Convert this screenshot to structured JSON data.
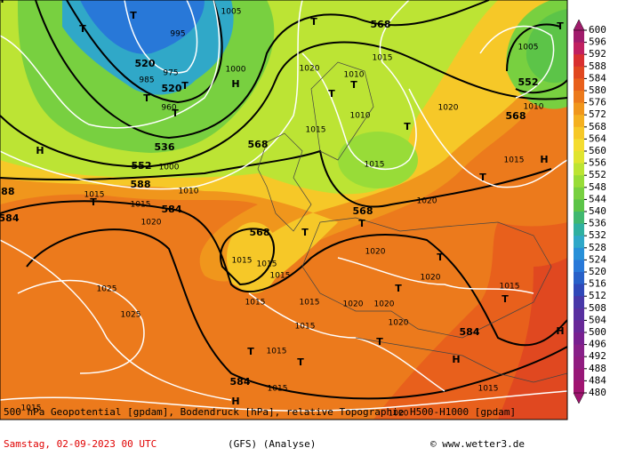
{
  "map": {
    "labels": [
      "568",
      "520",
      "520",
      "536",
      "552",
      "588",
      "584",
      "568",
      "568",
      "568",
      "584",
      "588",
      "552",
      "568",
      "584",
      "584",
      "1005",
      "1010",
      "1020",
      "1015",
      "1010",
      "1010",
      "1015",
      "1015",
      "1020",
      "1020",
      "1015",
      "1015",
      "1015",
      "1015",
      "1020",
      "1020",
      "1025",
      "1025",
      "1015",
      "1015",
      "1015",
      "1020",
      "1020",
      "1020",
      "1015",
      "1015",
      "1015",
      "1015",
      "1020",
      "1020",
      "1015",
      "1015",
      "960",
      "975",
      "985",
      "995",
      "1005",
      "1000",
      "1000",
      "1010",
      "1015",
      "T",
      "T",
      "T",
      "T",
      "T",
      "T",
      "T",
      "T",
      "T",
      "T",
      "T",
      "T",
      "T",
      "T",
      "T",
      "T",
      "T",
      "T",
      "T",
      "T",
      "H",
      "H",
      "H",
      "H",
      "H",
      "H",
      "H"
    ]
  },
  "legend": {
    "levels": [
      600,
      596,
      592,
      588,
      584,
      580,
      576,
      572,
      568,
      564,
      560,
      556,
      552,
      548,
      544,
      540,
      536,
      532,
      528,
      524,
      520,
      516,
      512,
      508,
      504,
      500,
      496,
      492,
      488,
      484,
      480
    ],
    "colors": [
      "#a01c6c",
      "#c02060",
      "#d83030",
      "#e04820",
      "#e8601c",
      "#ec7a1c",
      "#f0961c",
      "#f4b020",
      "#f6c828",
      "#f4dc30",
      "#e0e430",
      "#bce434",
      "#98dc38",
      "#78d040",
      "#5cc448",
      "#40b870",
      "#30b0a0",
      "#30a8c8",
      "#2890d8",
      "#2878d8",
      "#2860c8",
      "#3048b8",
      "#4838a8",
      "#5830a0",
      "#682898",
      "#782090",
      "#882088",
      "#901c80",
      "#981878",
      "#a01470"
    ]
  },
  "caption": {
    "line1": "500 hPa Geopotential [gpdam], Bodendruck [hPa], relative Topographie H500-H1000 [gpdam]",
    "date": "Samstag, 02-09-2023  00 UTC",
    "model": "(GFS)  (Analyse)",
    "source": "© www.wetter3.de"
  }
}
